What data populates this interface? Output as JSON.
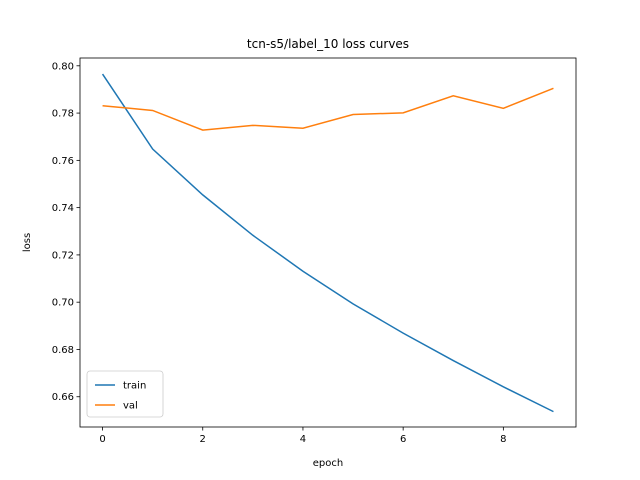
{
  "chart_data": {
    "type": "line",
    "title": "tcn-s5/label_10 loss curves",
    "xlabel": "epoch",
    "ylabel": "loss",
    "xlim": [
      -0.45,
      9.45
    ],
    "ylim": [
      0.6472,
      0.8033
    ],
    "x_ticks": [
      0,
      2,
      4,
      6,
      8
    ],
    "y_ticks": [
      0.66,
      0.68,
      0.7,
      0.72,
      0.74,
      0.76,
      0.78,
      0.8
    ],
    "grid": false,
    "legend": "lower-left",
    "x": [
      0,
      1,
      2,
      3,
      4,
      5,
      6,
      7,
      8,
      9
    ],
    "series": [
      {
        "name": "train",
        "color": "#1f77b4",
        "values": [
          0.7965,
          0.7648,
          0.7454,
          0.7283,
          0.7131,
          0.6993,
          0.6869,
          0.6753,
          0.6642,
          0.6537
        ]
      },
      {
        "name": "val",
        "color": "#ff7f0e",
        "values": [
          0.7831,
          0.7811,
          0.7728,
          0.7748,
          0.7736,
          0.7794,
          0.7801,
          0.7873,
          0.782,
          0.7905
        ]
      }
    ]
  }
}
